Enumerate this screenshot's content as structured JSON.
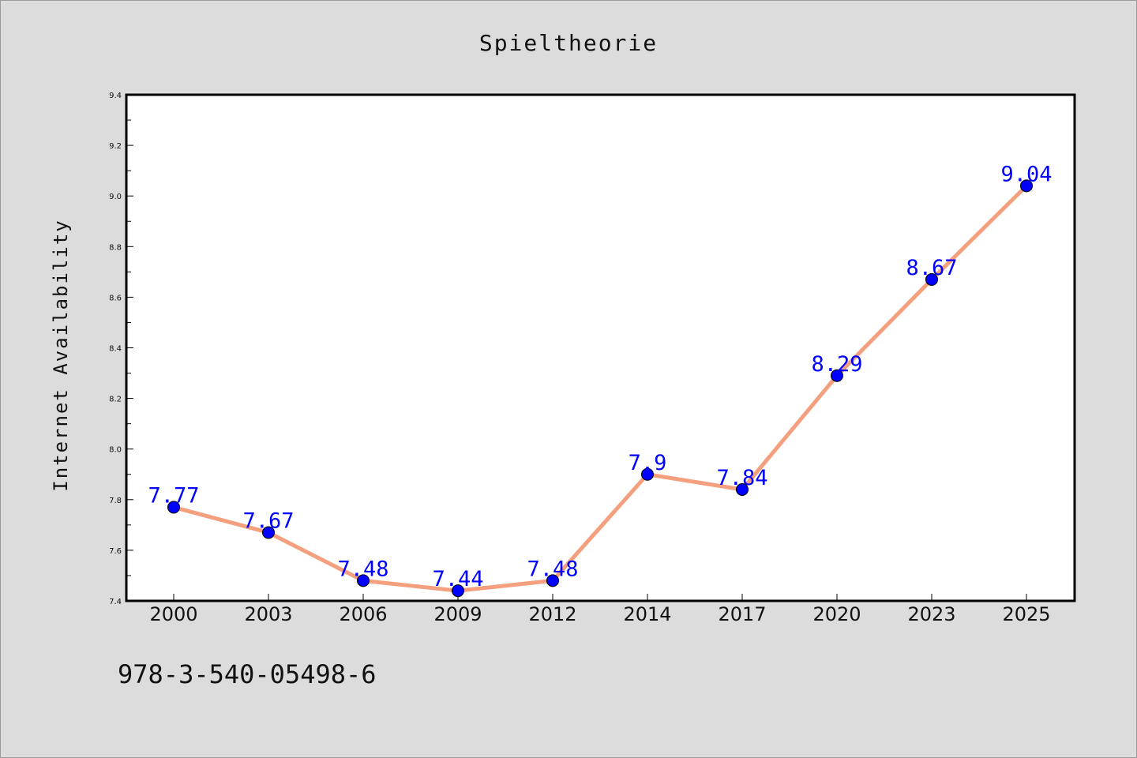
{
  "chart_data": {
    "type": "line",
    "title": "Spieltheorie",
    "xlabel": "",
    "ylabel": "Internet Availability",
    "categories": [
      "2000",
      "2003",
      "2006",
      "2009",
      "2012",
      "2014",
      "2017",
      "2020",
      "2023",
      "2025"
    ],
    "series": [
      {
        "values": [
          7.77,
          7.67,
          7.48,
          7.44,
          7.48,
          7.9,
          7.84,
          8.29,
          8.67,
          9.04
        ],
        "data_labels": [
          "7.77",
          "7.67",
          "7.48",
          "7.44",
          "7.48",
          "7.9",
          "7.84",
          "8.29",
          "8.67",
          "9.04"
        ],
        "line_color": "#f4a07e",
        "marker_color": "#0000ff"
      }
    ],
    "ylim": [
      7.4,
      9.4
    ],
    "yticks": [
      "7.4",
      "7.6",
      "7.8",
      "8.0",
      "8.2",
      "8.4",
      "8.6",
      "8.8",
      "9.0",
      "9.2",
      "9.4"
    ],
    "grid": false,
    "legend": "none"
  },
  "footer": {
    "text": "978-3-540-05498-6"
  },
  "colors": {
    "background": "#dcdcdc",
    "plot_area": "#ffffff",
    "label": "#0000ff"
  }
}
